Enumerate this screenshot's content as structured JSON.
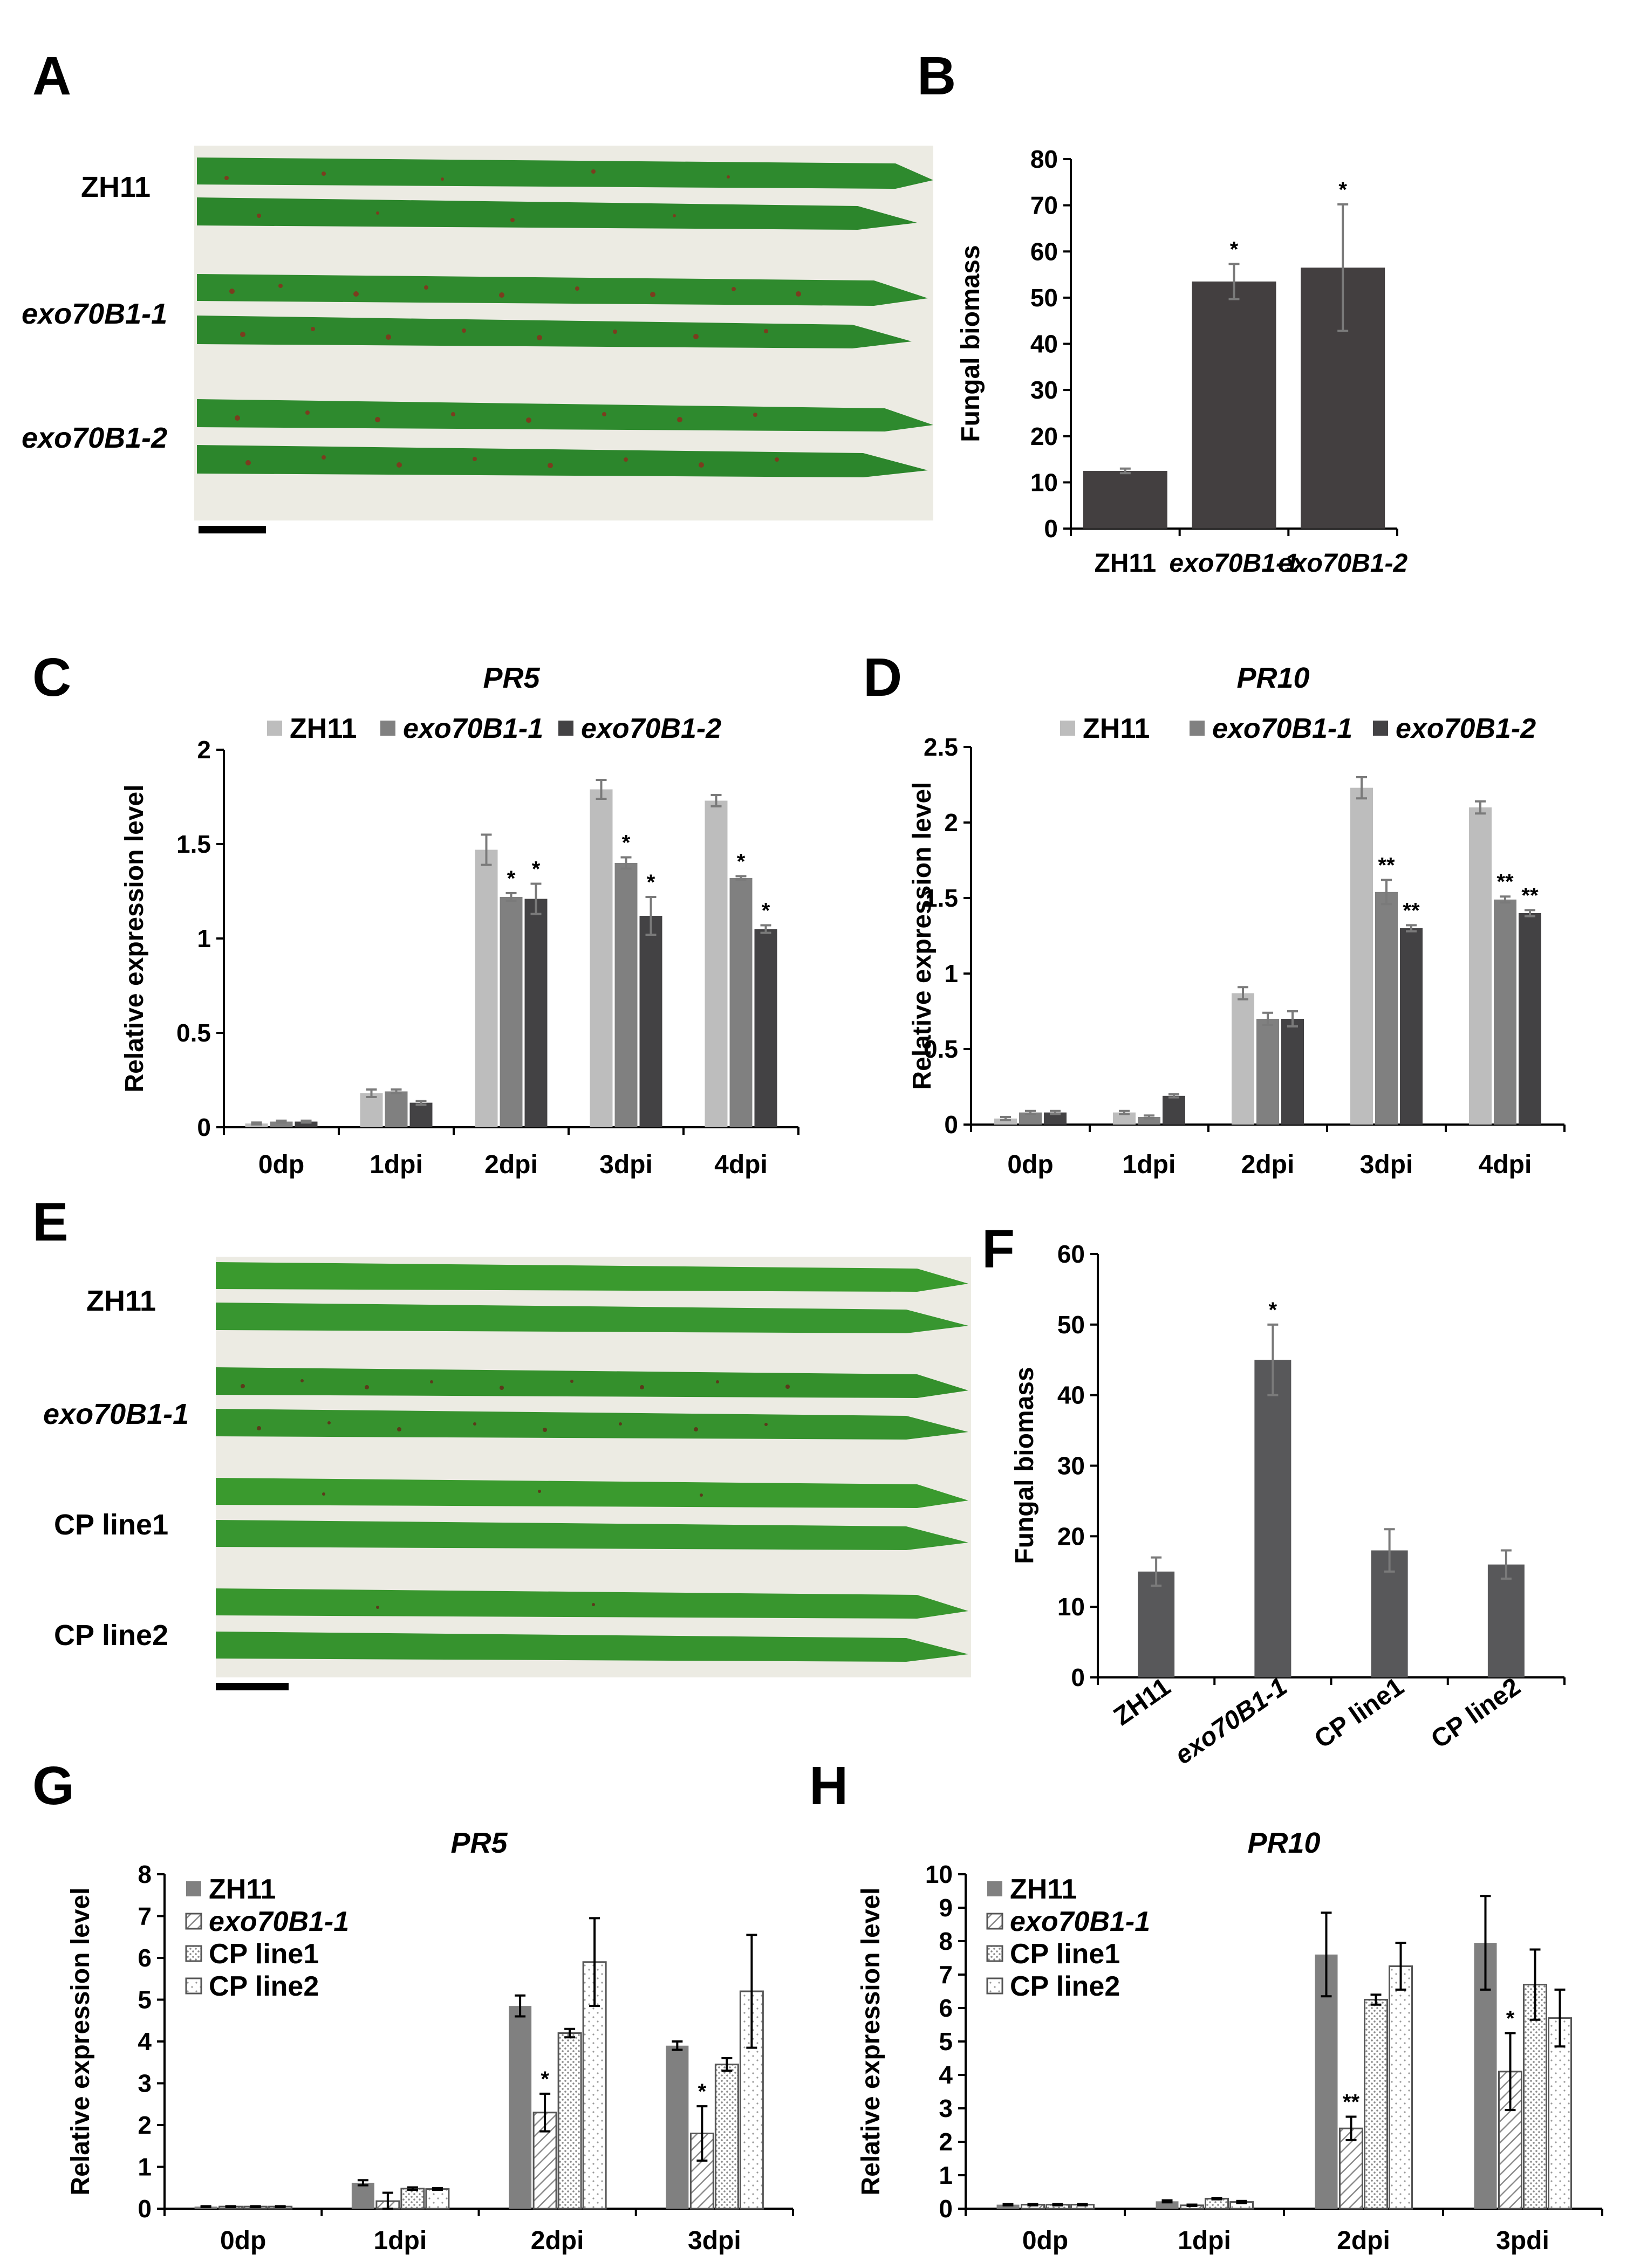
{
  "panels": {
    "A": {
      "letter": "A",
      "samples": [
        "ZH11",
        "exo70B1-1",
        "exo70B1-2"
      ]
    },
    "E": {
      "letter": "E",
      "samples": [
        "ZH11",
        "exo70B1-1",
        "CP line1",
        "CP line2"
      ]
    }
  },
  "colors": {
    "dark_bar": "#433f40",
    "mid_bar": "#58585a",
    "c_light": "#bdbdbd",
    "c_mid": "#808080",
    "c_dark": "#434244",
    "leaf_green": "#2e8a2e",
    "leaf_bg": "#ecebe3"
  },
  "chart_data": [
    {
      "id": "B",
      "letter": "B",
      "type": "bar",
      "title": "",
      "ylabel": "Fungal biomass",
      "xlabel": "",
      "ylim": [
        0,
        80
      ],
      "yticks": [
        "0",
        "10",
        "20",
        "30",
        "40",
        "50",
        "60",
        "70",
        "80"
      ],
      "categories": [
        "ZH11",
        "exo70B1-1",
        "exo70B1-2"
      ],
      "italic_categories": [
        false,
        true,
        true
      ],
      "series": [
        {
          "name": "Fungal biomass",
          "values": [
            12.5,
            53.5,
            56.5
          ],
          "errors": [
            0.5,
            3.8,
            13.7
          ]
        }
      ],
      "significance": [
        "",
        "*",
        "*"
      ]
    },
    {
      "id": "C",
      "letter": "C",
      "type": "bar",
      "title": "PR5",
      "ylabel": "Relative expression level",
      "xlabel": "",
      "ylim": [
        0,
        2
      ],
      "yticks": [
        "0",
        "0.5",
        "1",
        "1.5",
        "2"
      ],
      "categories": [
        "0dp",
        "1dpi",
        "2dpi",
        "3dpi",
        "4dpi"
      ],
      "legend": [
        "ZH11",
        "exo70B1-1",
        "exo70B1-2"
      ],
      "series": [
        {
          "name": "ZH11",
          "values": [
            0.02,
            0.18,
            1.47,
            1.79,
            1.73
          ],
          "errors": [
            0.005,
            0.02,
            0.08,
            0.05,
            0.03
          ]
        },
        {
          "name": "exo70B1-1",
          "values": [
            0.03,
            0.19,
            1.22,
            1.4,
            1.32
          ],
          "errors": [
            0.005,
            0.01,
            0.02,
            0.03,
            0.01
          ]
        },
        {
          "name": "exo70B1-2",
          "values": [
            0.03,
            0.13,
            1.21,
            1.12,
            1.05
          ],
          "errors": [
            0.005,
            0.01,
            0.08,
            0.1,
            0.02
          ]
        }
      ],
      "significance": [
        [
          "",
          "",
          ""
        ],
        [
          "",
          "",
          ""
        ],
        [
          "",
          "*",
          "*"
        ],
        [
          "",
          "*",
          "*"
        ],
        [
          "",
          "*",
          "*"
        ]
      ]
    },
    {
      "id": "D",
      "letter": "D",
      "type": "bar",
      "title": "PR10",
      "ylabel": "Relative expression level",
      "xlabel": "",
      "ylim": [
        0,
        2.5
      ],
      "yticks": [
        "0",
        "0.5",
        "1",
        "1.5",
        "2",
        "2.5"
      ],
      "categories": [
        "0dp",
        "1dpi",
        "2dpi",
        "3dpi",
        "4dpi"
      ],
      "legend": [
        "ZH11",
        "exo70B1-1",
        "exo70B1-2"
      ],
      "series": [
        {
          "name": "ZH11",
          "values": [
            0.04,
            0.08,
            0.87,
            2.23,
            2.1
          ],
          "errors": [
            0.01,
            0.01,
            0.04,
            0.07,
            0.04
          ]
        },
        {
          "name": "exo70B1-1",
          "values": [
            0.08,
            0.05,
            0.7,
            1.54,
            1.49
          ],
          "errors": [
            0.01,
            0.01,
            0.04,
            0.08,
            0.02
          ]
        },
        {
          "name": "exo70B1-2",
          "values": [
            0.08,
            0.19,
            0.7,
            1.3,
            1.4
          ],
          "errors": [
            0.01,
            0.01,
            0.05,
            0.02,
            0.02
          ]
        }
      ],
      "significance": [
        [
          "",
          "",
          ""
        ],
        [
          "",
          "",
          ""
        ],
        [
          "",
          "",
          ""
        ],
        [
          "",
          "**",
          "**"
        ],
        [
          "",
          "**",
          "**"
        ]
      ]
    },
    {
      "id": "F",
      "letter": "F",
      "type": "bar",
      "title": "",
      "ylabel": "Fungal biomass",
      "xlabel": "",
      "ylim": [
        0,
        60
      ],
      "yticks": [
        "0",
        "10",
        "20",
        "30",
        "40",
        "50",
        "60"
      ],
      "categories": [
        "ZH11",
        "exo70B1-1",
        "CP line1",
        "CP line2"
      ],
      "italic_categories": [
        false,
        true,
        false,
        false
      ],
      "series": [
        {
          "name": "Fungal biomass",
          "values": [
            15,
            45,
            18,
            16
          ],
          "errors": [
            2,
            5,
            3,
            2
          ]
        }
      ],
      "significance": [
        "",
        "*",
        "",
        ""
      ]
    },
    {
      "id": "G",
      "letter": "G",
      "type": "bar",
      "title": "PR5",
      "ylabel": "Relative expression level",
      "xlabel": "",
      "ylim": [
        0,
        8
      ],
      "yticks": [
        "0",
        "1",
        "2",
        "3",
        "4",
        "5",
        "6",
        "7",
        "8"
      ],
      "categories": [
        "0dp",
        "1dpi",
        "2dpi",
        "3dpi"
      ],
      "legend": [
        "ZH11",
        "exo70B1-1",
        "CP line1",
        "CP line2"
      ],
      "series": [
        {
          "name": "ZH11",
          "values": [
            0.05,
            0.62,
            4.85,
            3.9
          ],
          "errors": [
            0.01,
            0.06,
            0.25,
            0.1
          ]
        },
        {
          "name": "exo70B1-1",
          "values": [
            0.05,
            0.18,
            2.3,
            1.8
          ],
          "errors": [
            0.01,
            0.2,
            0.45,
            0.65
          ]
        },
        {
          "name": "CP line1",
          "values": [
            0.05,
            0.48,
            4.2,
            3.45
          ],
          "errors": [
            0.01,
            0.03,
            0.1,
            0.15
          ]
        },
        {
          "name": "CP line2",
          "values": [
            0.05,
            0.47,
            5.9,
            5.2
          ],
          "errors": [
            0.01,
            0.02,
            1.05,
            1.35
          ]
        }
      ],
      "significance": [
        [
          "",
          "",
          "",
          ""
        ],
        [
          "",
          "",
          "",
          ""
        ],
        [
          "",
          "*",
          "",
          ""
        ],
        [
          "",
          "*",
          "",
          ""
        ]
      ]
    },
    {
      "id": "H",
      "letter": "H",
      "type": "bar",
      "title": "PR10",
      "ylabel": "Relative expression level",
      "xlabel": "",
      "ylim": [
        0,
        10
      ],
      "yticks": [
        "0",
        "1",
        "2",
        "3",
        "4",
        "5",
        "6",
        "7",
        "8",
        "9",
        "10"
      ],
      "categories": [
        "0dp",
        "1dpi",
        "2dpi",
        "3pdi"
      ],
      "legend": [
        "ZH11",
        "exo70B1-1",
        "CP line1",
        "CP line2"
      ],
      "series": [
        {
          "name": "ZH11",
          "values": [
            0.12,
            0.22,
            7.6,
            7.95
          ],
          "errors": [
            0.02,
            0.03,
            1.25,
            1.4
          ]
        },
        {
          "name": "exo70B1-1",
          "values": [
            0.12,
            0.1,
            2.4,
            4.1
          ],
          "errors": [
            0.02,
            0.02,
            0.35,
            1.15
          ]
        },
        {
          "name": "CP line1",
          "values": [
            0.12,
            0.3,
            6.25,
            6.7
          ],
          "errors": [
            0.02,
            0.02,
            0.15,
            1.05
          ]
        },
        {
          "name": "CP line2",
          "values": [
            0.12,
            0.2,
            7.25,
            5.7
          ],
          "errors": [
            0.02,
            0.03,
            0.7,
            0.85
          ]
        }
      ],
      "significance": [
        [
          "",
          "",
          "",
          ""
        ],
        [
          "",
          "",
          "",
          ""
        ],
        [
          "",
          "**",
          "",
          ""
        ],
        [
          "",
          "*",
          "",
          ""
        ]
      ]
    }
  ]
}
